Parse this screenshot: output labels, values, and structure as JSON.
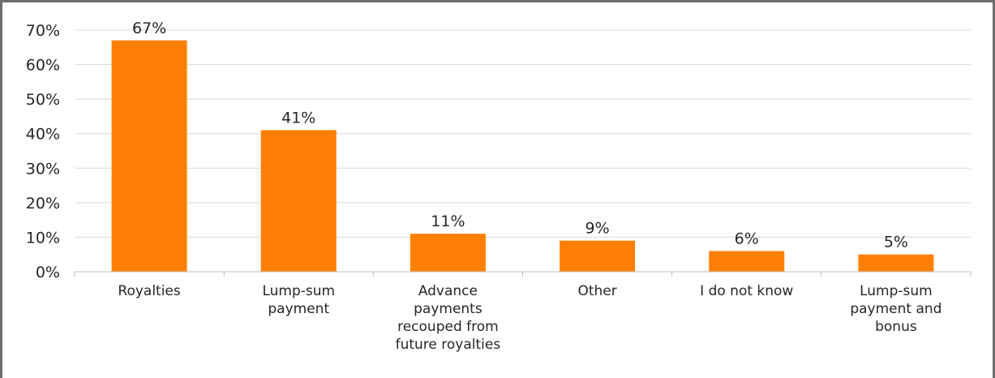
{
  "chart_data": {
    "type": "bar",
    "categories": [
      [
        "Royalties"
      ],
      [
        "Lump-sum",
        "payment"
      ],
      [
        "Advance",
        "payments",
        "recouped from",
        "future royalties"
      ],
      [
        "Other"
      ],
      [
        "I do not know"
      ],
      [
        "Lump-sum",
        "payment and",
        "bonus"
      ]
    ],
    "values": [
      67,
      41,
      11,
      9,
      6,
      5
    ],
    "data_labels": [
      "67%",
      "41%",
      "11%",
      "9%",
      "6%",
      "5%"
    ],
    "y_ticks": [
      "0%",
      "10%",
      "20%",
      "30%",
      "40%",
      "50%",
      "60%",
      "70%"
    ],
    "ylim": [
      0,
      70
    ],
    "grid": true,
    "legend": "none",
    "bar_color": "#fe7f06",
    "grid_color": "#d9d9d9",
    "axis_color": "#bfbfbf",
    "border_color": "#6e6e6e"
  }
}
